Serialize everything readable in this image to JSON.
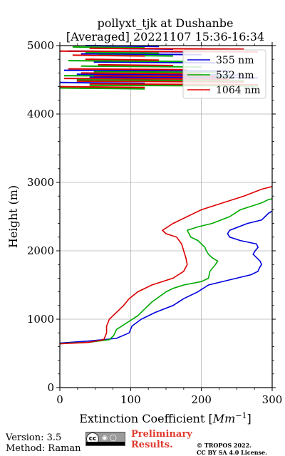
{
  "chart_data": {
    "type": "line",
    "title": "pollyxt_tjk at Dushanbe",
    "subtitle": "[Averaged] 20221107 15:36-16:34",
    "xlabel": "Extinction Coefficient [Mm⁻¹]",
    "xlabel_base": "Extinction Coefficient [",
    "xlabel_unit": "Mm",
    "xlabel_exp": "−1",
    "xlabel_close": "]",
    "ylabel": "Height (m)",
    "xlim": [
      0,
      300
    ],
    "ylim": [
      0,
      5000
    ],
    "xticks": [
      "0",
      "100",
      "200",
      "300"
    ],
    "yticks": [
      "0",
      "1000",
      "2000",
      "3000",
      "4000",
      "5000"
    ],
    "grid": true,
    "legend_position": "top-right",
    "series": [
      {
        "name": "355 nm",
        "color": "#0000dd",
        "points": [
          [
            0,
            650
          ],
          [
            40,
            680
          ],
          [
            80,
            720
          ],
          [
            98,
            800
          ],
          [
            102,
            900
          ],
          [
            115,
            1000
          ],
          [
            135,
            1100
          ],
          [
            160,
            1200
          ],
          [
            175,
            1300
          ],
          [
            195,
            1400
          ],
          [
            210,
            1500
          ],
          [
            250,
            1600
          ],
          [
            270,
            1650
          ],
          [
            280,
            1700
          ],
          [
            282,
            1750
          ],
          [
            285,
            1800
          ],
          [
            283,
            1850
          ],
          [
            278,
            1900
          ],
          [
            273,
            1950
          ],
          [
            276,
            2000
          ],
          [
            280,
            2050
          ],
          [
            278,
            2100
          ],
          [
            255,
            2150
          ],
          [
            240,
            2200
          ],
          [
            237,
            2250
          ],
          [
            240,
            2300
          ],
          [
            265,
            2400
          ],
          [
            285,
            2450
          ],
          [
            290,
            2500
          ],
          [
            295,
            2550
          ],
          [
            300,
            2580
          ]
        ]
      },
      {
        "name": "532 nm",
        "color": "#00aa00",
        "points": [
          [
            0,
            645
          ],
          [
            40,
            660
          ],
          [
            70,
            700
          ],
          [
            76,
            760
          ],
          [
            80,
            850
          ],
          [
            95,
            950
          ],
          [
            110,
            1050
          ],
          [
            120,
            1150
          ],
          [
            130,
            1250
          ],
          [
            150,
            1400
          ],
          [
            160,
            1450
          ],
          [
            175,
            1500
          ],
          [
            200,
            1550
          ],
          [
            210,
            1600
          ],
          [
            212,
            1700
          ],
          [
            220,
            1800
          ],
          [
            223,
            1850
          ],
          [
            215,
            1900
          ],
          [
            210,
            1950
          ],
          [
            207,
            2000
          ],
          [
            205,
            2050
          ],
          [
            200,
            2100
          ],
          [
            195,
            2150
          ],
          [
            185,
            2200
          ],
          [
            180,
            2300
          ],
          [
            195,
            2350
          ],
          [
            215,
            2400
          ],
          [
            240,
            2500
          ],
          [
            255,
            2600
          ],
          [
            270,
            2650
          ],
          [
            285,
            2700
          ],
          [
            295,
            2750
          ],
          [
            300,
            2760
          ]
        ]
      },
      {
        "name": "1064 nm",
        "color": "#dd0000",
        "points": [
          [
            0,
            640
          ],
          [
            40,
            660
          ],
          [
            62,
            700
          ],
          [
            66,
            800
          ],
          [
            66,
            900
          ],
          [
            70,
            1000
          ],
          [
            80,
            1100
          ],
          [
            90,
            1200
          ],
          [
            98,
            1300
          ],
          [
            110,
            1400
          ],
          [
            130,
            1500
          ],
          [
            160,
            1600
          ],
          [
            175,
            1700
          ],
          [
            180,
            1800
          ],
          [
            178,
            1900
          ],
          [
            175,
            2000
          ],
          [
            172,
            2100
          ],
          [
            165,
            2200
          ],
          [
            150,
            2250
          ],
          [
            145,
            2300
          ],
          [
            160,
            2400
          ],
          [
            180,
            2500
          ],
          [
            190,
            2550
          ],
          [
            200,
            2600
          ],
          [
            230,
            2700
          ],
          [
            260,
            2800
          ],
          [
            285,
            2900
          ],
          [
            300,
            2940
          ]
        ]
      }
    ],
    "noise_region": [
      4350,
      5000
    ],
    "noise_blue_heights": [
      4460,
      4540,
      4580,
      4640,
      4760,
      4880,
      4920,
      4960,
      5000
    ],
    "noise_green_heights": [
      4380,
      4420,
      4500,
      4560,
      4620,
      4700,
      4780,
      4860,
      4900,
      4980
    ],
    "noise_red_heights": [
      4400,
      4440,
      4480,
      4520,
      4560,
      4600,
      4660,
      4720,
      4800,
      4860,
      4920,
      4960
    ]
  },
  "footer": {
    "version": "Version: 3.5",
    "method": "Method: Raman",
    "cc_label": "BY SA",
    "preliminary_line1": "Preliminary",
    "preliminary_line2": "Results.",
    "copyright_line1": "© TROPOS 2022.",
    "copyright_line2": "CC BY SA 4.0 License."
  }
}
